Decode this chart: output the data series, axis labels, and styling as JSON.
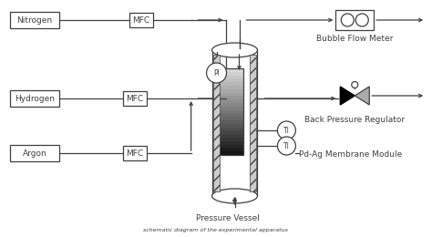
{
  "bg_color": "#ffffff",
  "line_color": "#404040",
  "labels": {
    "nitrogen": "Nitrogen",
    "hydrogen": "Hydrogen",
    "argon": "Argon",
    "mfc": "MFC",
    "pi": "PI",
    "ti": "TI",
    "bubble_flow": "Bubble Flow Meter",
    "back_pressure": "Back Pressure Regulator",
    "pressure_vessel": "Pressure Vessel",
    "pd_ag": "Pd-Ag Membrane Module",
    "caption": "schematic diagram of the experimental apparatus"
  },
  "font_size": 6.5,
  "lw": 0.9
}
